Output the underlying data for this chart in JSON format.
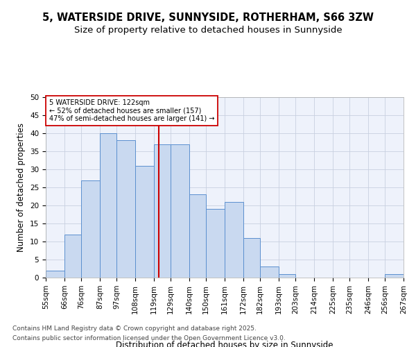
{
  "title_line1": "5, WATERSIDE DRIVE, SUNNYSIDE, ROTHERHAM, S66 3ZW",
  "title_line2": "Size of property relative to detached houses in Sunnyside",
  "xlabel": "Distribution of detached houses by size in Sunnyside",
  "ylabel": "Number of detached properties",
  "bar_values": [
    2,
    12,
    27,
    40,
    38,
    31,
    37,
    37,
    23,
    19,
    21,
    11,
    3,
    1,
    0,
    0,
    0,
    0,
    0,
    1
  ],
  "bin_edges": [
    55,
    66,
    76,
    87,
    97,
    108,
    119,
    129,
    140,
    150,
    161,
    172,
    182,
    193,
    203,
    214,
    225,
    235,
    246,
    256,
    267
  ],
  "bin_labels": [
    "55sqm",
    "66sqm",
    "76sqm",
    "87sqm",
    "97sqm",
    "108sqm",
    "119sqm",
    "129sqm",
    "140sqm",
    "150sqm",
    "161sqm",
    "172sqm",
    "182sqm",
    "193sqm",
    "203sqm",
    "214sqm",
    "225sqm",
    "235sqm",
    "246sqm",
    "256sqm",
    "267sqm"
  ],
  "bar_color": "#c9d9f0",
  "bar_edge_color": "#5b8fcf",
  "reference_line_x": 122,
  "annotation_text": "5 WATERSIDE DRIVE: 122sqm\n← 52% of detached houses are smaller (157)\n47% of semi-detached houses are larger (141) →",
  "annotation_box_color": "#ffffff",
  "annotation_box_edge_color": "#cc0000",
  "annotation_text_color": "#000000",
  "ref_line_color": "#cc0000",
  "ylim": [
    0,
    50
  ],
  "yticks": [
    0,
    5,
    10,
    15,
    20,
    25,
    30,
    35,
    40,
    45,
    50
  ],
  "grid_color": "#c8d0e0",
  "background_color": "#eef2fb",
  "footer_line1": "Contains HM Land Registry data © Crown copyright and database right 2025.",
  "footer_line2": "Contains public sector information licensed under the Open Government Licence v3.0.",
  "title_fontsize": 10.5,
  "subtitle_fontsize": 9.5,
  "axis_label_fontsize": 8.5,
  "tick_fontsize": 7.5,
  "footer_fontsize": 6.5
}
